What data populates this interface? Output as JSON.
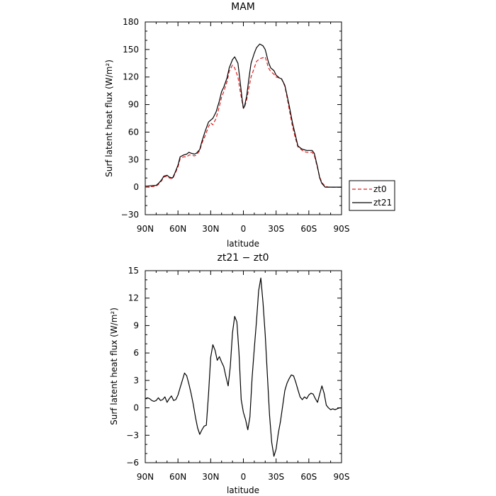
{
  "chart_data": [
    {
      "type": "line",
      "title": "MAM",
      "xlabel": "latitude",
      "ylabel": "Surf latent heat flux (W/m²)",
      "xlim": [
        -90,
        90
      ],
      "ylim": [
        -30,
        180
      ],
      "xticks": [
        -90,
        -60,
        -30,
        0,
        30,
        60,
        90
      ],
      "xticklabels": [
        "90N",
        "60N",
        "30N",
        "0",
        "30S",
        "60S",
        "90S"
      ],
      "yticks": [
        -30,
        0,
        30,
        60,
        90,
        120,
        150,
        180
      ],
      "yticklabels": [
        "−30",
        "0",
        "30",
        "60",
        "90",
        "120",
        "150",
        "180"
      ],
      "legend": {
        "placement": "right-outside",
        "entries": [
          {
            "name": "zt0",
            "color": "#e41a1c",
            "style": "dashed"
          },
          {
            "name": "zt21",
            "color": "#000000",
            "style": "solid"
          }
        ]
      },
      "series": [
        {
          "name": "zt0",
          "color": "#e41a1c",
          "style": "dashed",
          "x": [
            -90,
            -85,
            -80,
            -78,
            -75,
            -73,
            -70,
            -68,
            -65,
            -63,
            -60,
            -58,
            -55,
            -52,
            -50,
            -48,
            -45,
            -43,
            -40,
            -38,
            -35,
            -32,
            -30,
            -28,
            -25,
            -22,
            -20,
            -18,
            -15,
            -13,
            -10,
            -8,
            -5,
            -3,
            -1,
            0,
            1,
            3,
            5,
            7,
            10,
            12,
            15,
            18,
            20,
            23,
            25,
            28,
            30,
            33,
            35,
            38,
            40,
            42,
            45,
            48,
            50,
            53,
            55,
            58,
            60,
            63,
            65,
            68,
            70,
            72,
            75,
            78,
            80,
            85,
            90
          ],
          "y": [
            0,
            0.5,
            1,
            3,
            7,
            11,
            12,
            10,
            9,
            14,
            22,
            31,
            33,
            33,
            35,
            35,
            34,
            35,
            40,
            48,
            56,
            66,
            70,
            68,
            75,
            88,
            98,
            104,
            115,
            126,
            133,
            130,
            120,
            105,
            92,
            86,
            87,
            95,
            108,
            120,
            130,
            137,
            140,
            141,
            142,
            130,
            126,
            123,
            120,
            119,
            118,
            110,
            98,
            85,
            66,
            52,
            44,
            41,
            39,
            38,
            38,
            38,
            35,
            21,
            11,
            5,
            1,
            0,
            0,
            0,
            0
          ]
        },
        {
          "name": "zt21",
          "color": "#000000",
          "style": "solid",
          "x": [
            -90,
            -85,
            -80,
            -78,
            -75,
            -73,
            -70,
            -68,
            -65,
            -63,
            -60,
            -58,
            -55,
            -52,
            -50,
            -48,
            -45,
            -43,
            -40,
            -38,
            -35,
            -32,
            -30,
            -28,
            -25,
            -22,
            -20,
            -18,
            -15,
            -13,
            -10,
            -8,
            -5,
            -3,
            -1,
            0,
            1,
            3,
            5,
            7,
            10,
            12,
            15,
            18,
            20,
            23,
            25,
            28,
            30,
            33,
            35,
            38,
            40,
            42,
            45,
            48,
            50,
            53,
            55,
            58,
            60,
            63,
            65,
            68,
            70,
            72,
            75,
            78,
            80,
            85,
            90
          ],
          "y": [
            1,
            1.5,
            2,
            4,
            8,
            12,
            13,
            11,
            10,
            15,
            24,
            33,
            35,
            36,
            38,
            37,
            36,
            37,
            41,
            50,
            61,
            71,
            73,
            75,
            82,
            94,
            104,
            109,
            119,
            130,
            139,
            142,
            135,
            115,
            94,
            86,
            88,
            99,
            118,
            135,
            146,
            152,
            156,
            154,
            150,
            136,
            130,
            127,
            122,
            119,
            118,
            111,
            100,
            89,
            70,
            55,
            45,
            42,
            41,
            40,
            40,
            40,
            37,
            22,
            10,
            4,
            0,
            0,
            0,
            0,
            0
          ]
        }
      ]
    },
    {
      "type": "line",
      "title": "zt21 − zt0",
      "xlabel": "latitude",
      "ylabel": "Surf latent heat flux (W/m²)",
      "xlim": [
        -90,
        90
      ],
      "ylim": [
        -6,
        15
      ],
      "xticks": [
        -90,
        -60,
        -30,
        0,
        30,
        60,
        90
      ],
      "xticklabels": [
        "90N",
        "60N",
        "30N",
        "0",
        "30S",
        "60S",
        "90S"
      ],
      "yticks": [
        -6,
        -3,
        0,
        3,
        6,
        9,
        12,
        15
      ],
      "yticklabels": [
        "−6",
        "−3",
        "0",
        "3",
        "6",
        "9",
        "12",
        "15"
      ],
      "series": [
        {
          "color": "#000000",
          "style": "solid",
          "x": [
            -90,
            -88,
            -86,
            -84,
            -82,
            -80,
            -78,
            -76,
            -74,
            -72,
            -70,
            -68,
            -66,
            -64,
            -62,
            -60,
            -58,
            -56,
            -54,
            -52,
            -50,
            -48,
            -46,
            -44,
            -42,
            -40,
            -38,
            -36,
            -34,
            -32,
            -30,
            -28,
            -26,
            -24,
            -22,
            -20,
            -18,
            -16,
            -14,
            -12,
            -10,
            -8,
            -6,
            -4,
            -2,
            0,
            2,
            4,
            6,
            8,
            10,
            12,
            14,
            16,
            18,
            20,
            22,
            24,
            26,
            28,
            30,
            32,
            34,
            36,
            38,
            40,
            42,
            44,
            46,
            48,
            50,
            52,
            54,
            56,
            58,
            60,
            62,
            64,
            66,
            68,
            70,
            72,
            74,
            76,
            78,
            80,
            82,
            84,
            86,
            88,
            90
          ],
          "y": [
            1.0,
            1.1,
            1.0,
            0.8,
            0.7,
            0.8,
            1.1,
            0.8,
            0.9,
            1.2,
            0.6,
            1.0,
            1.3,
            0.8,
            0.9,
            1.4,
            2.2,
            3.0,
            3.8,
            3.5,
            2.6,
            1.6,
            0.4,
            -1.0,
            -2.2,
            -2.9,
            -2.4,
            -2.0,
            -1.9,
            1.5,
            5.5,
            6.9,
            6.3,
            5.2,
            5.6,
            5.0,
            4.5,
            3.4,
            2.4,
            4.5,
            8.2,
            10.0,
            9.4,
            6.0,
            0.9,
            -0.5,
            -1.3,
            -2.4,
            -1.0,
            3.3,
            6.5,
            9.5,
            12.8,
            14.2,
            11.5,
            8.0,
            3.5,
            -0.8,
            -3.8,
            -5.3,
            -4.5,
            -2.8,
            -1.5,
            0.2,
            1.9,
            2.7,
            3.2,
            3.6,
            3.5,
            2.8,
            2.0,
            1.2,
            0.9,
            1.2,
            1.0,
            1.4,
            1.6,
            1.5,
            1.0,
            0.6,
            1.5,
            2.4,
            1.6,
            0.3,
            0.0,
            -0.2,
            -0.1,
            -0.2,
            -0.1,
            0.0,
            0.0
          ]
        }
      ]
    }
  ]
}
